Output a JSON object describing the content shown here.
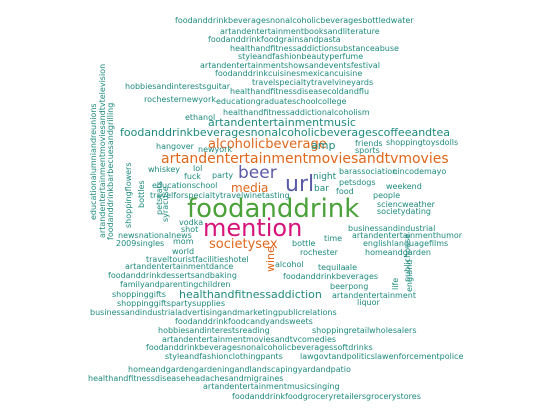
{
  "colors": {
    "background": "#ffffff",
    "teal": "#1e8a7e",
    "green": "#4ca23a",
    "purple": "#5a5aa6",
    "orange": "#e0671c",
    "magenta": "#d6147a"
  },
  "words": [
    {
      "text": "foodanddrinkbeveragesnonalcoholicbeveragesbottledwater",
      "color": "#1e8a7e"
    },
    {
      "text": "artandentertainmentbooksandliterature",
      "color": "#1e8a7e"
    },
    {
      "text": "foodanddrinkfoodgrainsandpasta",
      "color": "#1e8a7e"
    },
    {
      "text": "healthandfitnessaddictionsubstanceabuse",
      "color": "#1e8a7e"
    },
    {
      "text": "styleandfashionbeautyperfume",
      "color": "#1e8a7e"
    },
    {
      "text": "artandentertainmentshowsandeventsfestival",
      "color": "#1e8a7e"
    },
    {
      "text": "foodanddrinkcuisinesmexicancuisine",
      "color": "#1e8a7e"
    },
    {
      "text": "travelspecialtytravelvineyards",
      "color": "#1e8a7e"
    },
    {
      "text": "hobbiesandinterestsguitar",
      "color": "#1e8a7e"
    },
    {
      "text": "healthandfitnessdiseasecoldandflu",
      "color": "#1e8a7e"
    },
    {
      "text": "rochesternewyork",
      "color": "#1e8a7e"
    },
    {
      "text": "educationgraduateschoolcollege",
      "color": "#1e8a7e"
    },
    {
      "text": "ethanol",
      "color": "#1e8a7e"
    },
    {
      "text": "healthandfitnessaddictionalcoholism",
      "color": "#1e8a7e"
    },
    {
      "text": "artandentertainmentmusic",
      "color": "#1e8a7e"
    },
    {
      "text": "foodanddrinkbeveragesnonalcoholicbeveragescoffeeandtea",
      "color": "#1e8a7e"
    },
    {
      "text": "hangover",
      "color": "#1e8a7e"
    },
    {
      "text": "alcoholicbeverage",
      "color": "#e0671c"
    },
    {
      "text": "amp",
      "color": "#1e8a7e"
    },
    {
      "text": "friends",
      "color": "#1e8a7e"
    },
    {
      "text": "shoppingtoysdolls",
      "color": "#1e8a7e"
    },
    {
      "text": "newyork",
      "color": "#1e8a7e"
    },
    {
      "text": "sports",
      "color": "#1e8a7e"
    },
    {
      "text": "artandentertainmentmoviesandtvmovies",
      "color": "#e0671c"
    },
    {
      "text": "whiskey",
      "color": "#1e8a7e"
    },
    {
      "text": "lol",
      "color": "#1e8a7e"
    },
    {
      "text": "barassociation",
      "color": "#1e8a7e"
    },
    {
      "text": "cincodemayo",
      "color": "#1e8a7e"
    },
    {
      "text": "beer",
      "color": "#5a5aa6"
    },
    {
      "text": "fuck",
      "color": "#1e8a7e"
    },
    {
      "text": "party",
      "color": "#1e8a7e"
    },
    {
      "text": "night",
      "color": "#1e8a7e"
    },
    {
      "text": "petsdogs",
      "color": "#1e8a7e"
    },
    {
      "text": "weekend",
      "color": "#1e8a7e"
    },
    {
      "text": "educationschool",
      "color": "#1e8a7e"
    },
    {
      "text": "media",
      "color": "#e0671c"
    },
    {
      "text": "url",
      "color": "#5a5aa6"
    },
    {
      "text": "bar",
      "color": "#1e8a7e"
    },
    {
      "text": "food",
      "color": "#1e8a7e"
    },
    {
      "text": "people",
      "color": "#1e8a7e"
    },
    {
      "text": "travelforspecialtytravelwinetasting",
      "color": "#1e8a7e"
    },
    {
      "text": "sciencweather",
      "color": "#1e8a7e"
    },
    {
      "text": "societydating",
      "color": "#1e8a7e"
    },
    {
      "text": "foodanddrink",
      "color": "#4ca23a"
    },
    {
      "text": "vodka",
      "color": "#1e8a7e"
    },
    {
      "text": "shot",
      "color": "#1e8a7e"
    },
    {
      "text": "mention",
      "color": "#d6147a"
    },
    {
      "text": "newsnationalnews",
      "color": "#1e8a7e"
    },
    {
      "text": "businessandindustrial",
      "color": "#1e8a7e"
    },
    {
      "text": "artandentertainmenthumor",
      "color": "#1e8a7e"
    },
    {
      "text": "2009singles",
      "color": "#1e8a7e"
    },
    {
      "text": "mom",
      "color": "#1e8a7e"
    },
    {
      "text": "societysex",
      "color": "#e0671c"
    },
    {
      "text": "bottle",
      "color": "#1e8a7e"
    },
    {
      "text": "time",
      "color": "#1e8a7e"
    },
    {
      "text": "englishlanguagefilms",
      "color": "#1e8a7e"
    },
    {
      "text": "world",
      "color": "#1e8a7e"
    },
    {
      "text": "wine",
      "color": "#e0671c"
    },
    {
      "text": "rochester",
      "color": "#1e8a7e"
    },
    {
      "text": "homeandgarden",
      "color": "#1e8a7e"
    },
    {
      "text": "traveltouristfacilitieshotel",
      "color": "#1e8a7e"
    },
    {
      "text": "alcohol",
      "color": "#1e8a7e"
    },
    {
      "text": "tequila",
      "color": "#1e8a7e"
    },
    {
      "text": "artandentertainmentdance",
      "color": "#1e8a7e"
    },
    {
      "text": "ale",
      "color": "#1e8a7e"
    },
    {
      "text": "foodanddrinkdessertsandbaking",
      "color": "#1e8a7e"
    },
    {
      "text": "foodanddrinkbeverages",
      "color": "#1e8a7e"
    },
    {
      "text": "familyandparentingchildren",
      "color": "#1e8a7e"
    },
    {
      "text": "beerpong",
      "color": "#1e8a7e"
    },
    {
      "text": "shoppinggifts",
      "color": "#1e8a7e"
    },
    {
      "text": "healthandfitnessaddiction",
      "color": "#1e8a7e"
    },
    {
      "text": "artandentertainment",
      "color": "#1e8a7e"
    },
    {
      "text": "liquor",
      "color": "#1e8a7e"
    },
    {
      "text": "shoppinggiftspartysupplies",
      "color": "#1e8a7e"
    },
    {
      "text": "businessandindustrialadvertisingandmarketingpublicrelations",
      "color": "#1e8a7e"
    },
    {
      "text": "foodanddrinkfoodcandyandsweets",
      "color": "#1e8a7e"
    },
    {
      "text": "hobbiesandinterestsreading",
      "color": "#1e8a7e"
    },
    {
      "text": "shoppingretailwholesalers",
      "color": "#1e8a7e"
    },
    {
      "text": "artandentertainmentmoviesandtvcomedies",
      "color": "#1e8a7e"
    },
    {
      "text": "foodanddrinkbeveragesnonalcoholicbeveragessoftdrinks",
      "color": "#1e8a7e"
    },
    {
      "text": "styleandfashionclothingpants",
      "color": "#1e8a7e"
    },
    {
      "text": "lawgovtandpoliticslawenforcementpolice",
      "color": "#1e8a7e"
    },
    {
      "text": "homeandgardengardeningandlandscapingyardandpatio",
      "color": "#1e8a7e"
    },
    {
      "text": "healthandfitnessdiseaseheadachesandmigraines",
      "color": "#1e8a7e"
    },
    {
      "text": "artandentertainmentmusicsinging",
      "color": "#1e8a7e"
    },
    {
      "text": "foodanddrinkfoodgroceryretailersgrocerystores",
      "color": "#1e8a7e"
    },
    {
      "text": "educationalumniandreunions",
      "color": "#1e8a7e"
    },
    {
      "text": "artandentertainmentmoviesandtvtelevision",
      "color": "#1e8a7e"
    },
    {
      "text": "foodanddrinkbarbecuesandgrilling",
      "color": "#1e8a7e"
    },
    {
      "text": "shoppingflowers",
      "color": "#1e8a7e"
    },
    {
      "text": "bottles",
      "color": "#1e8a7e"
    },
    {
      "text": "petscats",
      "color": "#1e8a7e"
    },
    {
      "text": "syracuse",
      "color": "#1e8a7e"
    },
    {
      "text": "publichouse",
      "color": "#1e8a7e"
    },
    {
      "text": "life",
      "color": "#1e8a7e"
    },
    {
      "text": "england",
      "color": "#1e8a7e"
    }
  ]
}
